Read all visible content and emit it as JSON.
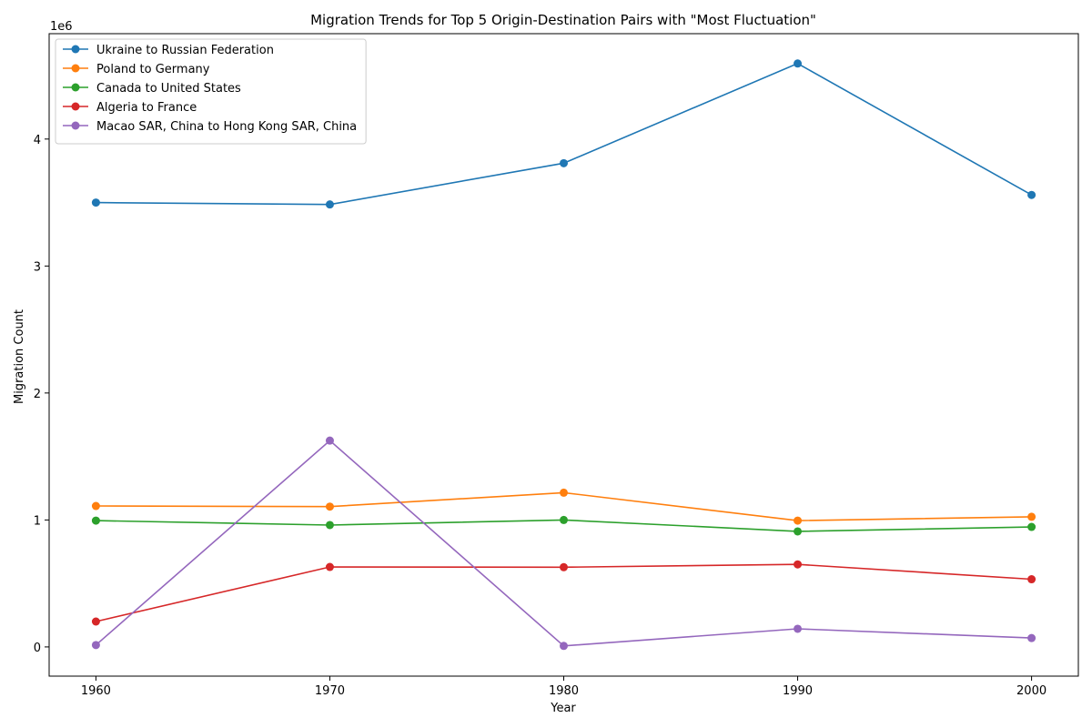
{
  "chart_data": {
    "type": "line",
    "title": "Migration Trends for Top 5 Origin-Destination Pairs with \"Most Fluctuation\"",
    "xlabel": "Year",
    "ylabel": "Migration Count",
    "y_offset_label": "1e6",
    "x": [
      1960,
      1970,
      1980,
      1990,
      2000
    ],
    "xlim": [
      1958,
      2002
    ],
    "ylim": [
      -230000,
      4830000
    ],
    "y_ticks": [
      0,
      1000000,
      2000000,
      3000000,
      4000000
    ],
    "y_tick_labels": [
      "0",
      "1",
      "2",
      "3",
      "4"
    ],
    "x_tick_labels": [
      "1960",
      "1970",
      "1980",
      "1990",
      "2000"
    ],
    "grid": false,
    "legend_position": "top-left",
    "series": [
      {
        "name": "Ukraine to Russian Federation",
        "color": "#1f77b4",
        "values": [
          3500000,
          3485000,
          3810000,
          4595000,
          3560000
        ]
      },
      {
        "name": "Poland to Germany",
        "color": "#ff7f0e",
        "values": [
          1110000,
          1105000,
          1215000,
          995000,
          1025000
        ]
      },
      {
        "name": "Canada to United States",
        "color": "#2ca02c",
        "values": [
          995000,
          960000,
          1000000,
          910000,
          945000
        ]
      },
      {
        "name": "Algeria to France",
        "color": "#d62728",
        "values": [
          200000,
          630000,
          628000,
          650000,
          533000
        ]
      },
      {
        "name": "Macao SAR, China to Hong Kong SAR, China",
        "color": "#9467bd",
        "values": [
          15000,
          1625000,
          8000,
          143000,
          70000
        ]
      }
    ]
  }
}
